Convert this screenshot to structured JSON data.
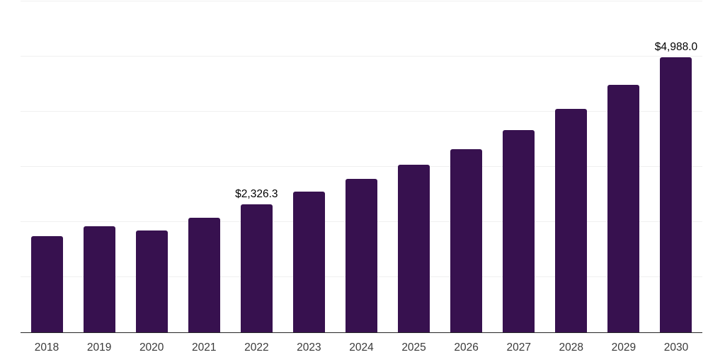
{
  "chart_data": {
    "type": "bar",
    "title": "",
    "xlabel": "",
    "ylabel": "",
    "categories": [
      "2018",
      "2019",
      "2020",
      "2021",
      "2022",
      "2023",
      "2024",
      "2025",
      "2026",
      "2027",
      "2028",
      "2029",
      "2030"
    ],
    "values": [
      1740,
      1920,
      1843,
      2073,
      2326.3,
      2547,
      2777,
      3033,
      3327,
      3673,
      4057,
      4492,
      4988
    ],
    "point_labels": [
      null,
      null,
      null,
      null,
      "$2,326.3",
      null,
      null,
      null,
      null,
      null,
      null,
      null,
      "$4,988.0"
    ],
    "ylim": [
      0,
      6000
    ],
    "gridline_step": 1000,
    "grid": true,
    "legend": false,
    "colors": {
      "bar_fill": "#37114F",
      "gridline": "#f0f0f0",
      "axis_line": "#262626",
      "tick_label": "#3a3a3a",
      "value_label": "#000000",
      "background": "#ffffff"
    }
  }
}
